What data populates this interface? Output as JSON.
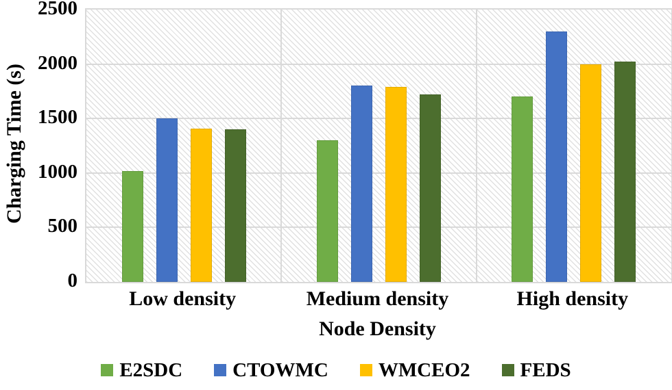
{
  "chart_data": {
    "type": "bar",
    "title": "",
    "xlabel": "Node Density",
    "ylabel": "Charging Time (s)",
    "ylim": [
      0,
      2500
    ],
    "yticks": [
      0,
      500,
      1000,
      1500,
      2000,
      2500
    ],
    "categories": [
      "Low density",
      "Medium density",
      "High density"
    ],
    "series": [
      {
        "name": "E2SDC",
        "color": "#70AD47",
        "values": [
          1020,
          1300,
          1700
        ]
      },
      {
        "name": "CTOWMC",
        "color": "#4472C4",
        "values": [
          1500,
          1800,
          2300
        ]
      },
      {
        "name": "WMCEO2",
        "color": "#FFC000",
        "values": [
          1410,
          1790,
          2000
        ]
      },
      {
        "name": "FEDS",
        "color": "#4C6E2E",
        "values": [
          1400,
          1720,
          2020
        ]
      }
    ],
    "legend_position": "bottom",
    "grid": true,
    "gridline_color": "#d9d9d9",
    "plot_background": "diagonal-hatch",
    "text_color": "#000000"
  }
}
